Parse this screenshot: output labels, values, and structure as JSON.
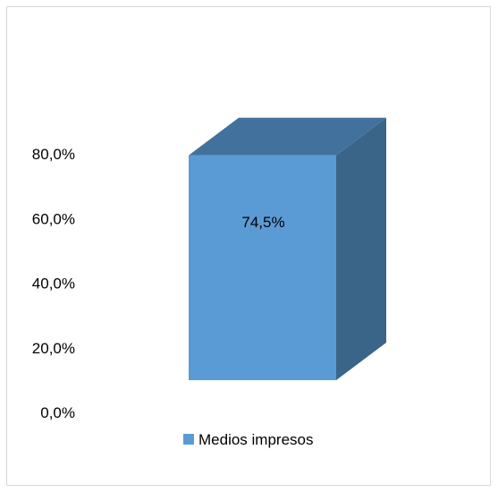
{
  "chart_data": {
    "type": "bar",
    "categories": [
      ""
    ],
    "series": [
      {
        "name": "Medios impresos",
        "values": [
          74.5
        ],
        "color": "#5b9bd5"
      }
    ],
    "data_labels": [
      "74,5%"
    ],
    "y_ticks": [
      "0,0%",
      "20,0%",
      "40,0%",
      "60,0%",
      "80,0%"
    ],
    "ylim": [
      0,
      80
    ],
    "style": "3d-column",
    "gridlines": false,
    "legend_position": "bottom",
    "colors": {
      "front": "#5b9bd5",
      "top": "#41719c",
      "side": "#3a6589"
    }
  }
}
